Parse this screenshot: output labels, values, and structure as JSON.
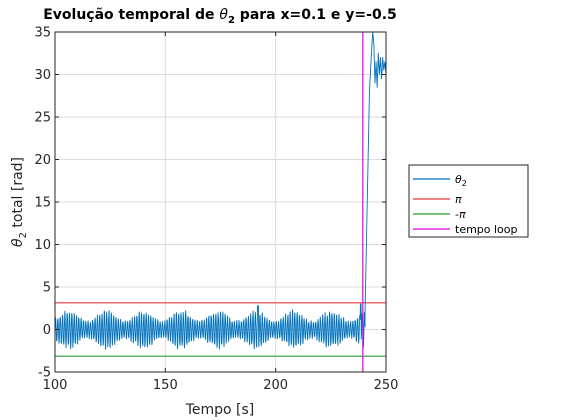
{
  "chart_data": {
    "type": "line",
    "title_prefix": "Evolução temporal de ",
    "title_symbol": "θ",
    "title_symbol_sub": "2",
    "title_suffix": " para x=0.1 e y=-0.5",
    "xlabel": "Tempo [s]",
    "ylabel_symbol": "θ",
    "ylabel_sub": "2",
    "ylabel_suffix": " total [rad]",
    "xlim": [
      100,
      250
    ],
    "ylim": [
      -5,
      35
    ],
    "xticks": [
      100,
      150,
      200,
      250
    ],
    "yticks": [
      -5,
      0,
      5,
      10,
      15,
      20,
      25,
      30,
      35
    ],
    "grid": true,
    "legend_placement": "outside-right",
    "series": [
      {
        "name_symbol": "θ",
        "name_sub": "2",
        "color": "#0072BD",
        "oscillation_region": {
          "x_range": [
            100,
            240.5
          ],
          "amplitude_range": [
            1.0,
            2.2
          ],
          "center": 0
        },
        "x": [
          240.5,
          241.5,
          242.5,
          243.5,
          244,
          244.5,
          245,
          245.5,
          246,
          246.5,
          247,
          247.5,
          248,
          248.5,
          249,
          249.5,
          250
        ],
        "y": [
          2.0,
          15.0,
          28.0,
          33.0,
          35.0,
          33.5,
          29.0,
          31.5,
          28.5,
          32.5,
          30.0,
          32.0,
          29.5,
          32.0,
          30.5,
          31.5,
          30.0
        ]
      },
      {
        "name_symbol": "π",
        "type": "hline",
        "y": 3.14159,
        "color": "#E8383B"
      },
      {
        "name_symbol": "-π",
        "type": "hline",
        "y": -3.14159,
        "color": "#2E9A2E"
      },
      {
        "name": "tempo loop",
        "type": "vline",
        "x": 239.5,
        "color": "#E000E0"
      }
    ]
  }
}
